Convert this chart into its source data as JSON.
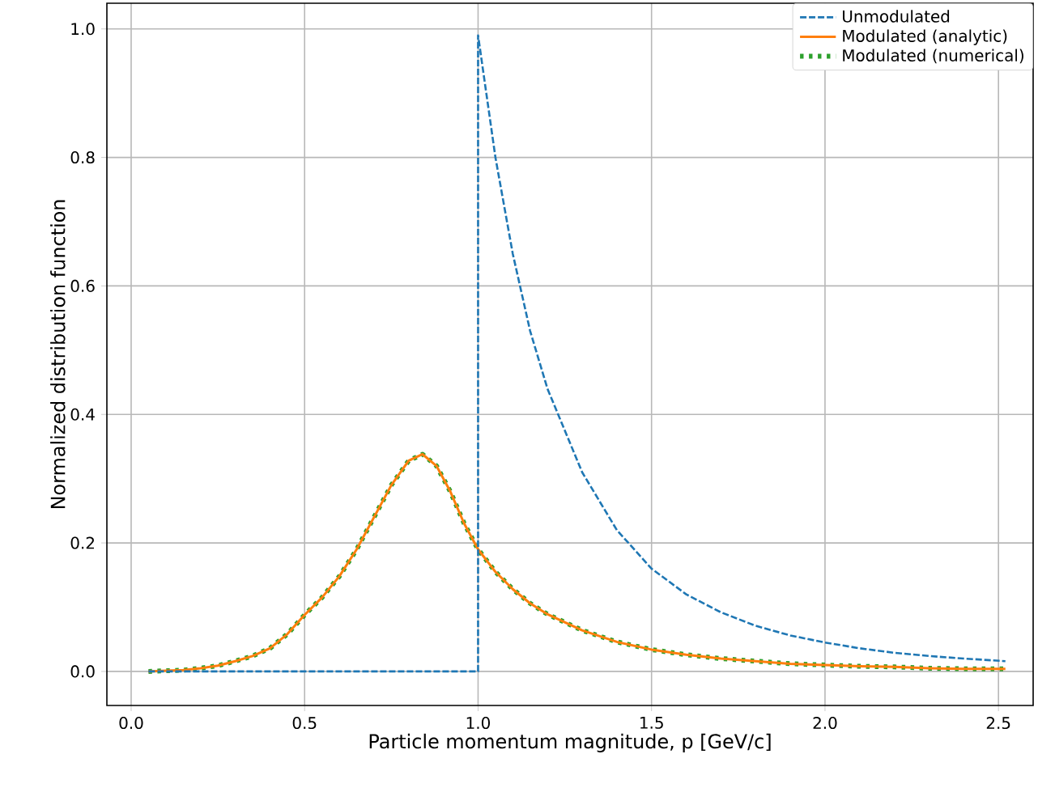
{
  "chart_data": {
    "type": "line",
    "xlabel": "Particle momentum magnitude, p [GeV/c]",
    "ylabel": "Normalized distribution function",
    "x": [
      0.05,
      0.1,
      0.15,
      0.2,
      0.25,
      0.3,
      0.35,
      0.4,
      0.45,
      0.5,
      0.55,
      0.6,
      0.65,
      0.7,
      0.75,
      0.8,
      0.84,
      0.88,
      0.92,
      0.96,
      1.0,
      1.05,
      1.1,
      1.15,
      1.2,
      1.3,
      1.4,
      1.5,
      1.6,
      1.7,
      1.8,
      1.9,
      2.0,
      2.1,
      2.2,
      2.3,
      2.4,
      2.52
    ],
    "series": [
      {
        "name": "Unmodulated",
        "color": "#1f77b4",
        "line_style": "dashed",
        "x": [
          0.05,
          1.0,
          1.0,
          1.05,
          1.1,
          1.15,
          1.2,
          1.3,
          1.4,
          1.5,
          1.6,
          1.7,
          1.8,
          1.9,
          2.0,
          2.1,
          2.2,
          2.3,
          2.4,
          2.52
        ],
        "values": [
          0,
          0,
          0.99,
          0.8,
          0.65,
          0.53,
          0.44,
          0.31,
          0.22,
          0.16,
          0.12,
          0.092,
          0.071,
          0.056,
          0.045,
          0.036,
          0.029,
          0.024,
          0.02,
          0.016
        ]
      },
      {
        "name": "Modulated (analytic)",
        "color": "#ff7f0e",
        "line_style": "solid",
        "values": [
          0.0,
          0.001,
          0.002,
          0.005,
          0.009,
          0.016,
          0.024,
          0.036,
          0.058,
          0.088,
          0.115,
          0.148,
          0.19,
          0.24,
          0.29,
          0.328,
          0.338,
          0.32,
          0.28,
          0.23,
          0.19,
          0.155,
          0.128,
          0.106,
          0.089,
          0.064,
          0.046,
          0.034,
          0.026,
          0.02,
          0.016,
          0.012,
          0.01,
          0.008,
          0.007,
          0.005,
          0.004,
          0.004
        ]
      },
      {
        "name": "Modulated (numerical)",
        "color": "#2ca02c",
        "line_style": "dotted",
        "values": [
          0.0,
          0.001,
          0.002,
          0.005,
          0.009,
          0.016,
          0.024,
          0.036,
          0.058,
          0.088,
          0.115,
          0.148,
          0.19,
          0.24,
          0.29,
          0.328,
          0.338,
          0.32,
          0.28,
          0.23,
          0.19,
          0.155,
          0.128,
          0.106,
          0.089,
          0.064,
          0.046,
          0.034,
          0.026,
          0.02,
          0.016,
          0.012,
          0.01,
          0.008,
          0.007,
          0.005,
          0.004,
          0.004
        ]
      }
    ],
    "xlim": [
      -0.07,
      2.6
    ],
    "ylim": [
      -0.053,
      1.04
    ],
    "xticks": [
      {
        "value": 0,
        "label": "0.0"
      },
      0.5,
      {
        "value": 1,
        "label": "1.0"
      },
      1.5,
      {
        "value": 2,
        "label": "2.0"
      },
      2.5
    ],
    "yticks": [
      {
        "value": 0,
        "label": "0.0"
      },
      0.2,
      0.4,
      0.6,
      0.8,
      {
        "value": 1,
        "label": "1.0"
      }
    ],
    "grid": true,
    "legend": "top right",
    "marker": "none"
  }
}
